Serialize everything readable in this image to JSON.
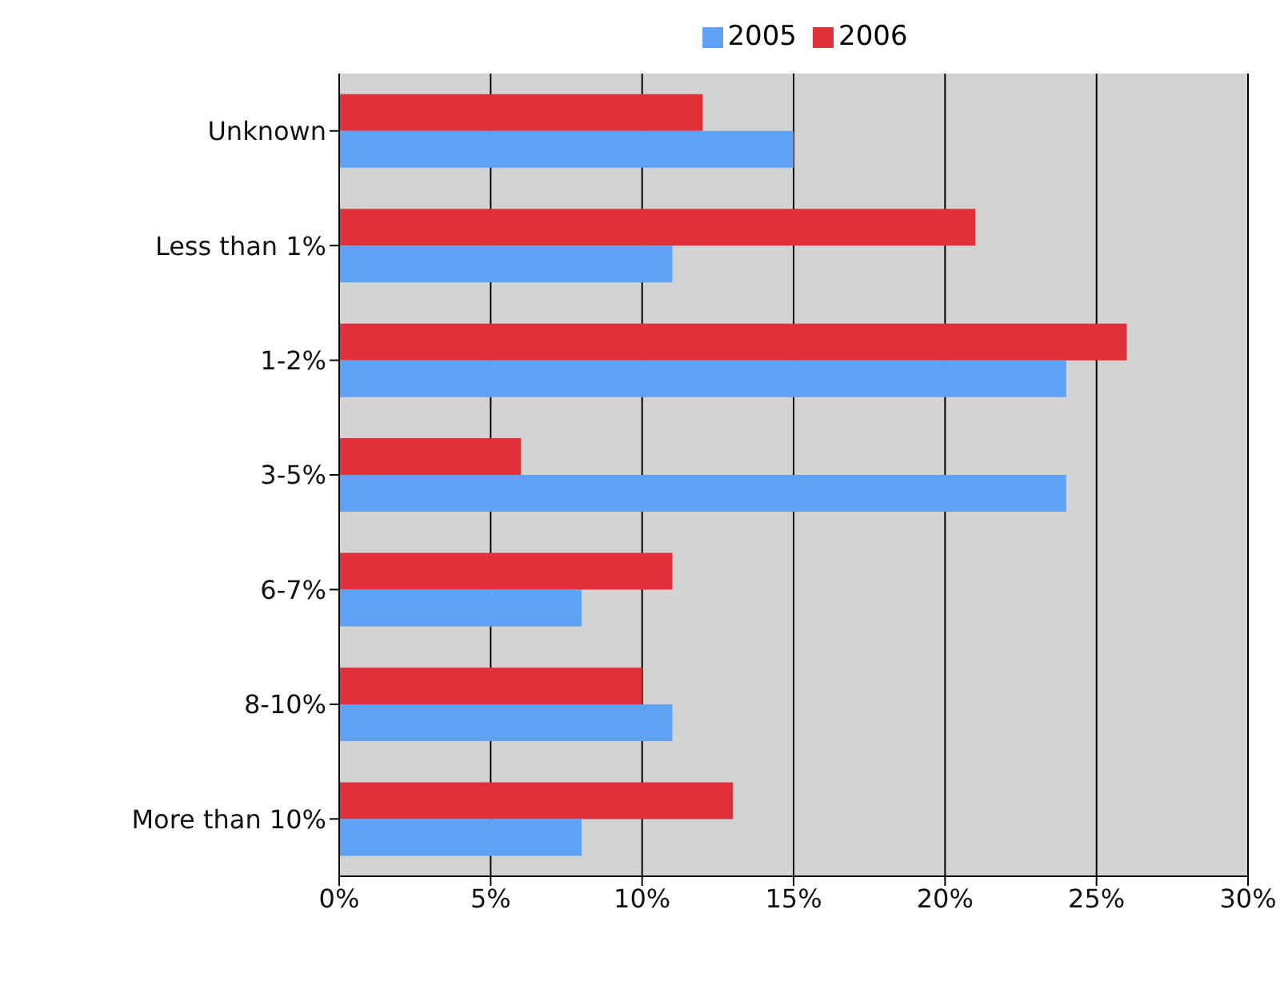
{
  "chart_data": {
    "type": "bar",
    "orientation": "horizontal",
    "categories": [
      "Unknown",
      "Less than 1%",
      "1-2%",
      "3-5%",
      "6-7%",
      "8-10%",
      "More than 10%"
    ],
    "series": [
      {
        "name": "2005",
        "color": "#5ea2f5",
        "values": [
          15,
          11,
          24,
          24,
          8,
          11,
          8
        ]
      },
      {
        "name": "2006",
        "color": "#e0313a",
        "values": [
          12,
          21,
          26,
          6,
          11,
          10,
          13
        ]
      }
    ],
    "xlim": [
      0,
      30
    ],
    "xticks": [
      {
        "value": 0,
        "label": "0%"
      },
      {
        "value": 5,
        "label": "5%"
      },
      {
        "value": 10,
        "label": "10%"
      },
      {
        "value": 15,
        "label": "15%"
      },
      {
        "value": 20,
        "label": "20%"
      },
      {
        "value": 25,
        "label": "25%"
      },
      {
        "value": 30,
        "label": "30%"
      }
    ],
    "grid": "x",
    "legend": "top"
  }
}
